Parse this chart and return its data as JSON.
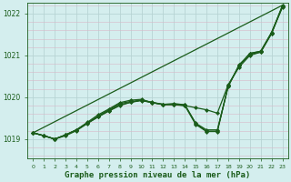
{
  "xlabel": "Graphe pression niveau de la mer (hPa)",
  "bg_color": "#d4eeee",
  "grid_color": "#b8d4d4",
  "line_color": "#1a5c1a",
  "ylim": [
    1018.55,
    1022.25
  ],
  "yticks": [
    1019,
    1020,
    1021,
    1022
  ],
  "xticks": [
    0,
    1,
    2,
    3,
    4,
    5,
    6,
    7,
    8,
    9,
    10,
    11,
    12,
    13,
    14,
    15,
    16,
    17,
    18,
    19,
    20,
    21,
    22,
    23
  ],
  "trend_x": [
    0,
    23
  ],
  "trend_y": [
    1019.15,
    1022.2
  ],
  "series1_x": [
    0,
    1,
    2,
    3,
    4,
    5,
    6,
    7,
    8,
    9,
    10,
    11,
    12,
    13,
    14,
    15,
    16,
    17,
    18,
    19,
    20,
    21,
    22,
    23
  ],
  "series1_y": [
    1019.15,
    1019.08,
    1019.0,
    1019.1,
    1019.22,
    1019.38,
    1019.53,
    1019.67,
    1019.8,
    1019.88,
    1019.92,
    1019.87,
    1019.83,
    1019.82,
    1019.8,
    1019.75,
    1019.7,
    1019.62,
    1020.3,
    1020.72,
    1021.0,
    1021.08,
    1021.52,
    1022.2
  ],
  "series2_x": [
    0,
    1,
    2,
    3,
    4,
    5,
    6,
    7,
    8,
    9,
    10,
    11,
    12,
    13,
    14,
    15,
    16,
    17,
    18,
    19,
    20,
    21,
    22,
    23
  ],
  "series2_y": [
    1019.15,
    1019.08,
    1019.0,
    1019.1,
    1019.22,
    1019.38,
    1019.55,
    1019.7,
    1019.85,
    1019.9,
    1019.93,
    1019.88,
    1019.83,
    1019.85,
    1019.82,
    1019.38,
    1019.22,
    1019.22,
    1020.25,
    1020.78,
    1021.03,
    1021.08,
    1021.53,
    1022.15
  ],
  "series3_x": [
    0,
    1,
    2,
    3,
    4,
    5,
    6,
    7,
    8,
    9,
    10,
    11,
    12,
    13,
    14,
    15,
    16,
    17,
    18,
    19,
    20,
    21,
    22,
    23
  ],
  "series3_y": [
    1019.15,
    1019.08,
    1019.0,
    1019.08,
    1019.2,
    1019.37,
    1019.53,
    1019.68,
    1019.82,
    1019.88,
    1019.93,
    1019.87,
    1019.82,
    1019.83,
    1019.8,
    1019.35,
    1019.18,
    1019.18,
    1020.28,
    1020.75,
    1021.05,
    1021.1,
    1021.55,
    1022.17
  ],
  "main_series_x": [
    0,
    1,
    2,
    3,
    4,
    5,
    6,
    7,
    8,
    9,
    10,
    11,
    12,
    13,
    14,
    15,
    16,
    17,
    18,
    19,
    20,
    21,
    22,
    23
  ],
  "main_series_y": [
    1019.15,
    1019.08,
    1019.0,
    1019.1,
    1019.22,
    1019.4,
    1019.58,
    1019.72,
    1019.87,
    1019.93,
    1019.95,
    1019.87,
    1019.83,
    1019.83,
    1019.82,
    1019.37,
    1019.19,
    1019.19,
    1020.28,
    1020.75,
    1021.05,
    1021.1,
    1021.55,
    1022.17
  ]
}
